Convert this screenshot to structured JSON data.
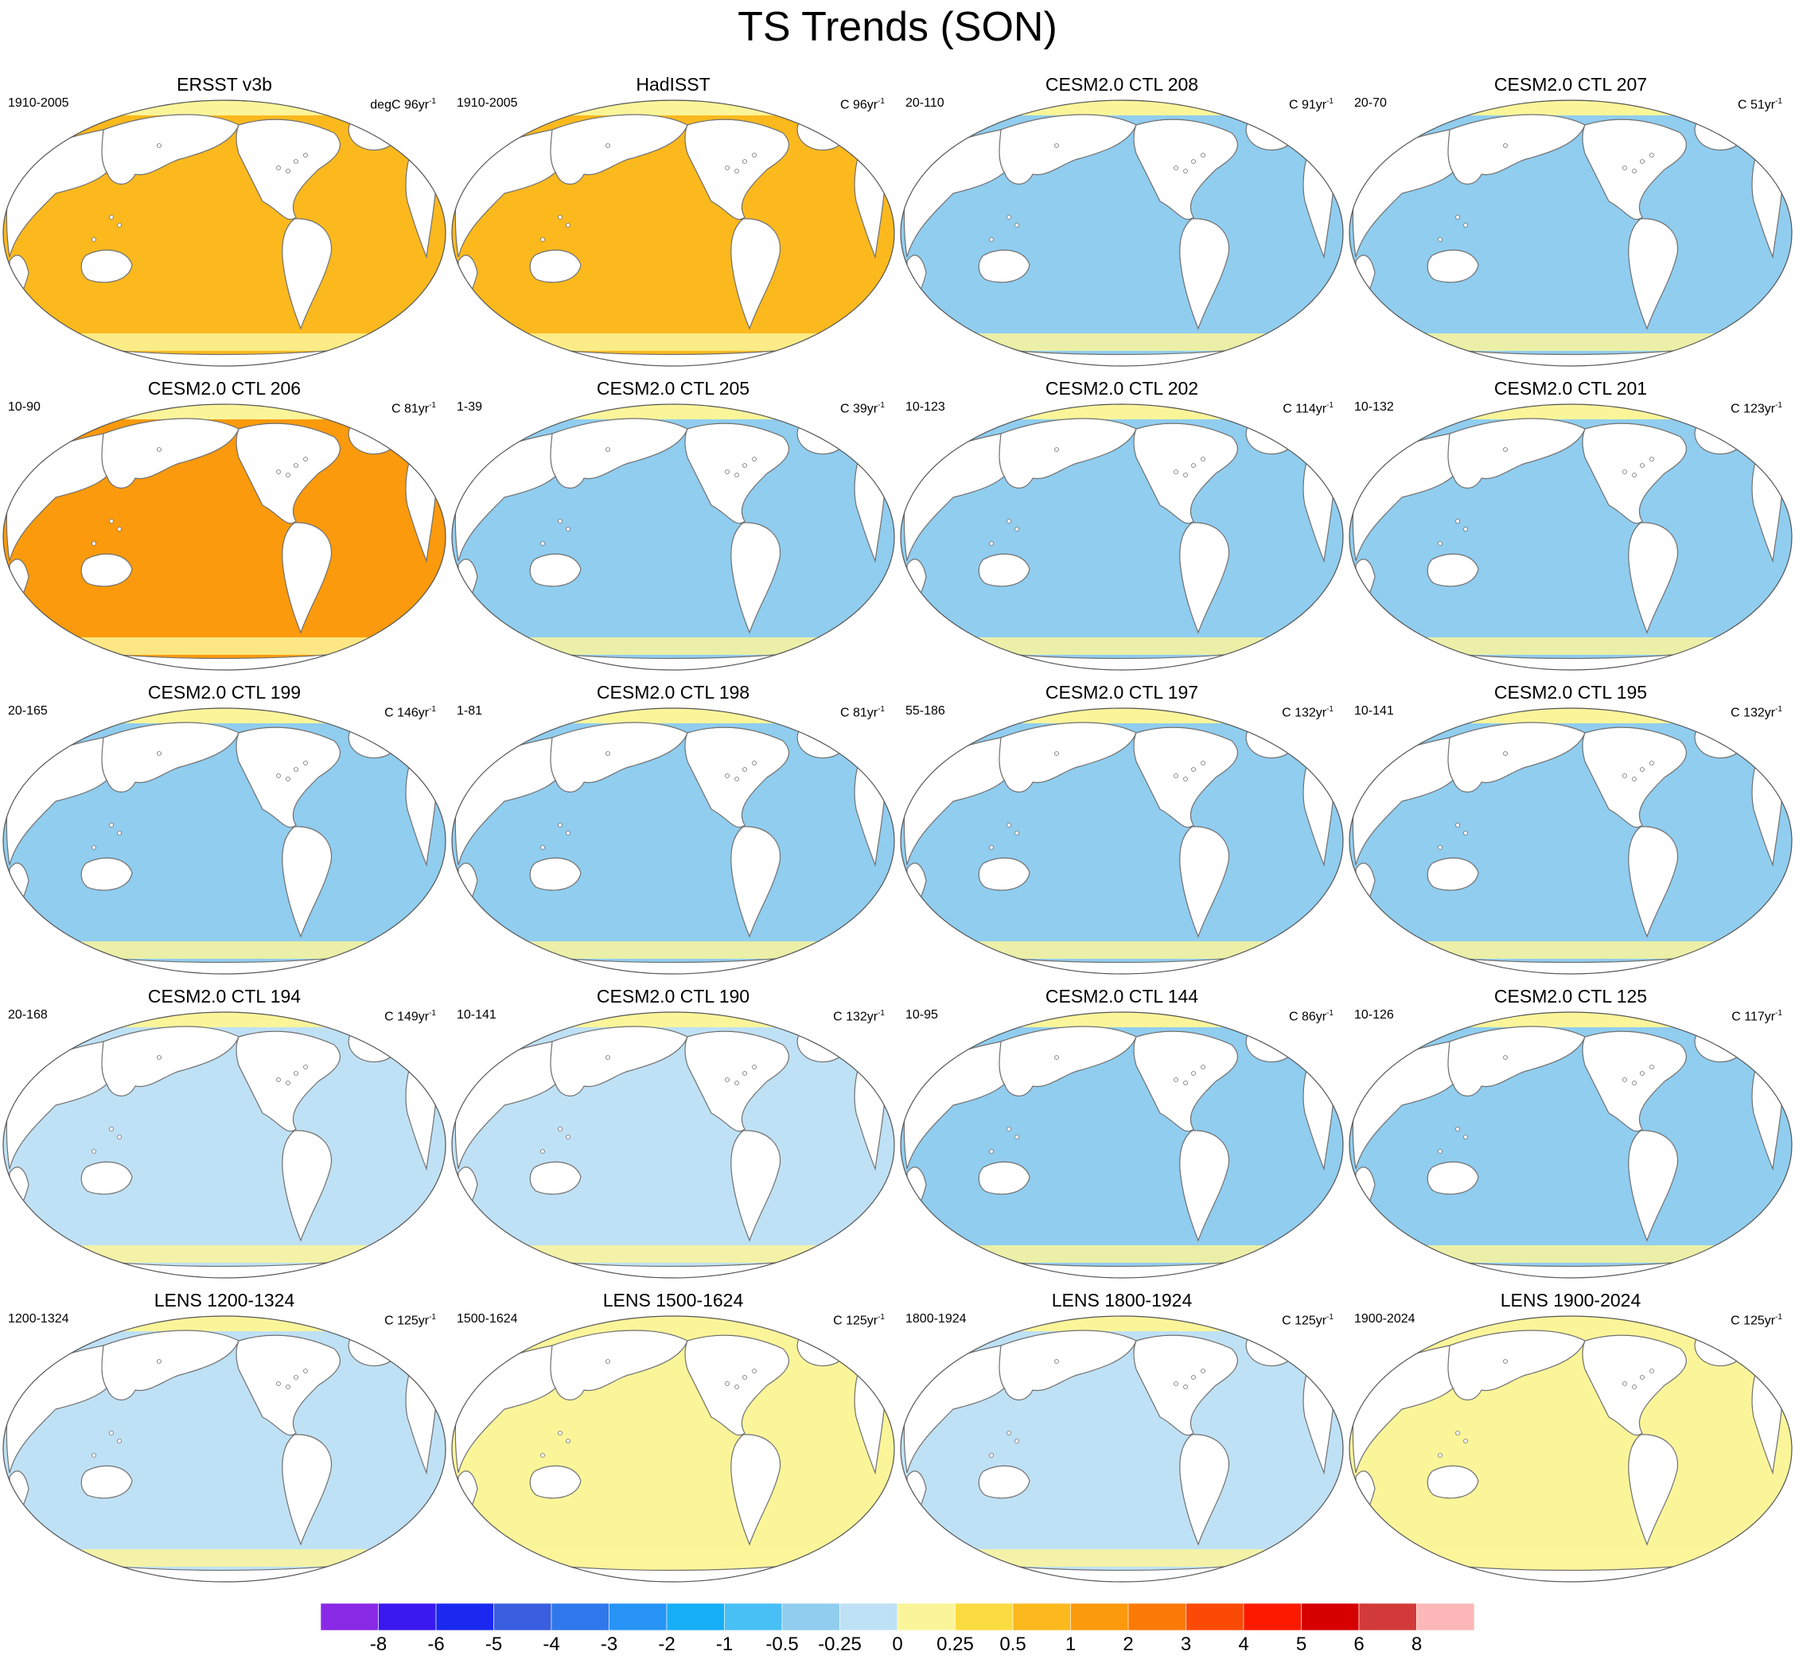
{
  "title": "TS Trends (SON)",
  "colors": {
    "ocean_fill_note": "fill by trend class",
    "land": "#ffffff",
    "coast": "#707070",
    "levels": [
      "#8a29e6",
      "#3a18f0",
      "#1a28f0",
      "#3a5ee0",
      "#2f78ec",
      "#2793f5",
      "#16aef5",
      "#48bff5",
      "#90cdef",
      "#bfe1f5",
      "#fbf59a",
      "#fbdc40",
      "#fbb91e",
      "#fb9a0c",
      "#fb7a06",
      "#fb4a06",
      "#fb1a00",
      "#d60000",
      "#d23a3a",
      "#fcb8b8"
    ]
  },
  "colorbar": {
    "labels": [
      "-8",
      "-6",
      "-5",
      "-4",
      "-3",
      "-2",
      "-1",
      "-0.5",
      "-0.25",
      "0",
      "0.25",
      "0.5",
      "1",
      "2",
      "3",
      "4",
      "5",
      "6",
      "8"
    ]
  },
  "panels": [
    {
      "title": "ERSST v3b",
      "period": "1910-2005",
      "units": "degC 96yr",
      "exp": "-1",
      "bg": "#fbb91e"
    },
    {
      "title": "HadISST",
      "period": "1910-2005",
      "units": "C 96yr",
      "exp": "-1",
      "bg": "#fbb91e"
    },
    {
      "title": "CESM2.0 CTL 208",
      "period": "20-110",
      "units": "C 91yr",
      "exp": "-1",
      "bg": "#90cdef"
    },
    {
      "title": "CESM2.0 CTL 207",
      "period": "20-70",
      "units": "C 51yr",
      "exp": "-1",
      "bg": "#90cdef"
    },
    {
      "title": "CESM2.0 CTL 206",
      "period": "10-90",
      "units": "C 81yr",
      "exp": "-1",
      "bg": "#fb9a0c"
    },
    {
      "title": "CESM2.0 CTL 205",
      "period": "1-39",
      "units": "C 39yr",
      "exp": "-1",
      "bg": "#90cdef"
    },
    {
      "title": "CESM2.0 CTL 202",
      "period": "10-123",
      "units": "C 114yr",
      "exp": "-1",
      "bg": "#90cdef"
    },
    {
      "title": "CESM2.0 CTL 201",
      "period": "10-132",
      "units": "C 123yr",
      "exp": "-1",
      "bg": "#90cdef"
    },
    {
      "title": "CESM2.0 CTL 199",
      "period": "20-165",
      "units": "C 146yr",
      "exp": "-1",
      "bg": "#90cdef"
    },
    {
      "title": "CESM2.0 CTL 198",
      "period": "1-81",
      "units": "C 81yr",
      "exp": "-1",
      "bg": "#90cdef"
    },
    {
      "title": "CESM2.0 CTL 197",
      "period": "55-186",
      "units": "C 132yr",
      "exp": "-1",
      "bg": "#90cdef"
    },
    {
      "title": "CESM2.0 CTL 195",
      "period": "10-141",
      "units": "C 132yr",
      "exp": "-1",
      "bg": "#90cdef"
    },
    {
      "title": "CESM2.0 CTL 194",
      "period": "20-168",
      "units": "C 149yr",
      "exp": "-1",
      "bg": "#bfe1f5"
    },
    {
      "title": "CESM2.0 CTL 190",
      "period": "10-141",
      "units": "C 132yr",
      "exp": "-1",
      "bg": "#bfe1f5"
    },
    {
      "title": "CESM2.0 CTL 144",
      "period": "10-95",
      "units": "C 86yr",
      "exp": "-1",
      "bg": "#90cdef"
    },
    {
      "title": "CESM2.0 CTL 125",
      "period": "10-126",
      "units": "C 117yr",
      "exp": "-1",
      "bg": "#90cdef"
    },
    {
      "title": "LENS 1200-1324",
      "period": "1200-1324",
      "units": "C 125yr",
      "exp": "-1",
      "bg": "#bfe1f5"
    },
    {
      "title": "LENS 1500-1624",
      "period": "1500-1624",
      "units": "C 125yr",
      "exp": "-1",
      "bg": "#fbf59a"
    },
    {
      "title": "LENS 1800-1924",
      "period": "1800-1924",
      "units": "C 125yr",
      "exp": "-1",
      "bg": "#bfe1f5"
    },
    {
      "title": "LENS 1900-2024",
      "period": "1900-2024",
      "units": "C 125yr",
      "exp": "-1",
      "bg": "#fbf59a"
    }
  ]
}
